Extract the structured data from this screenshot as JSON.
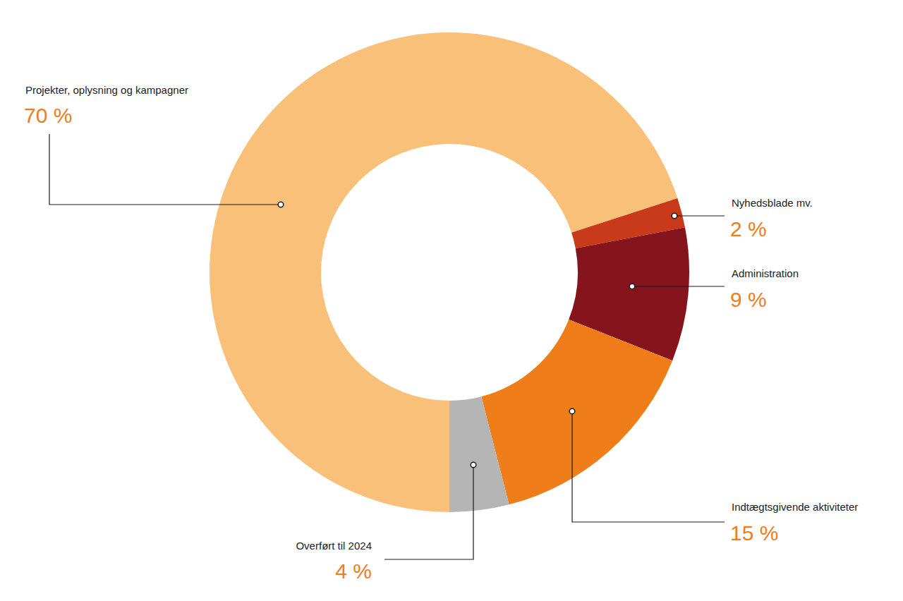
{
  "chart_data": {
    "type": "donut",
    "categories": [
      "Projekter, oplysning og kampagner",
      "Nyhedsblade mv.",
      "Administration",
      "Indtægtsgivende aktiviteter",
      "Overført til 2024"
    ],
    "values": [
      70,
      2,
      9,
      15,
      4
    ],
    "value_labels": [
      "70 %",
      "2 %",
      "9 %",
      "15 %",
      "4 %"
    ],
    "colors": [
      "#f8c078",
      "#c83a1a",
      "#85141c",
      "#ee7d1a",
      "#b5b5b5"
    ],
    "data_labels": true
  }
}
